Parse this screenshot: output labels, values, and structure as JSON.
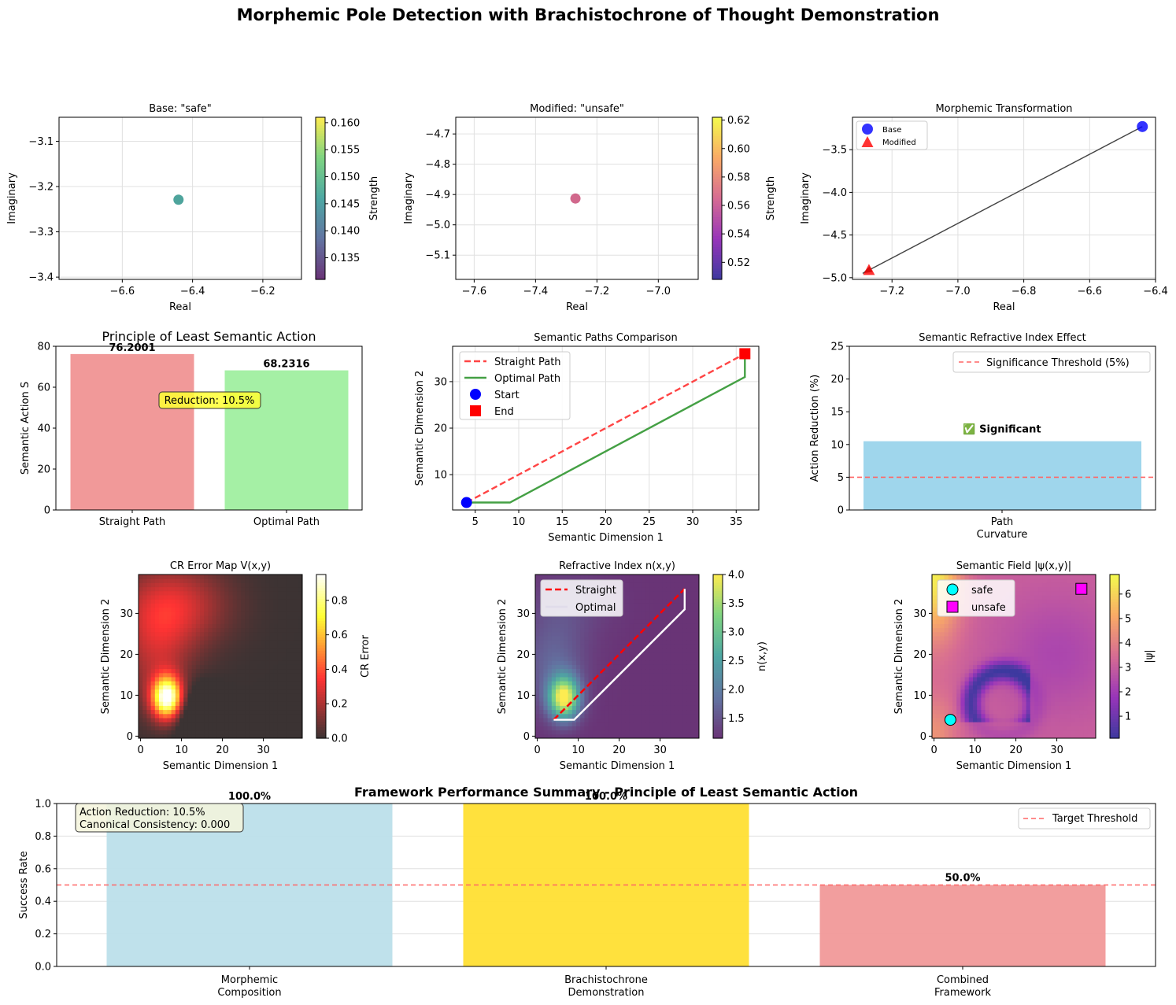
{
  "figure": {
    "title": "Morphemic Pole Detection with Brachistochrone of Thought Demonstration"
  },
  "chart_data": [
    {
      "id": "base",
      "type": "scatter",
      "title": "Base: \"safe\"",
      "xlabel": "Real",
      "ylabel": "Imaginary",
      "xticks": [
        "−6.6",
        "−6.4",
        "−6.2"
      ],
      "yticks": [
        "−3.4",
        "−3.3",
        "−3.2",
        "−3.1"
      ],
      "xlim": [
        -6.78,
        -6.09
      ],
      "ylim": [
        -3.405,
        -3.047
      ],
      "points": [
        {
          "x": -6.44,
          "y": -3.229,
          "strength": 0.146
        }
      ],
      "colorbar": {
        "label": "Strength",
        "ticks": [
          "0.135",
          "0.140",
          "0.145",
          "0.150",
          "0.155",
          "0.160"
        ],
        "range": [
          0.131,
          0.161
        ],
        "colormap": "viridis"
      },
      "point_color": "#3b9a91"
    },
    {
      "id": "modified",
      "type": "scatter",
      "title": "Modified: \"unsafe\"",
      "xlabel": "Real",
      "ylabel": "Imaginary",
      "xticks": [
        "−7.6",
        "−7.4",
        "−7.2",
        "−7.0"
      ],
      "yticks": [
        "−5.1",
        "−5.0",
        "−4.9",
        "−4.8",
        "−4.7"
      ],
      "xlim": [
        -7.66,
        -6.87
      ],
      "ylim": [
        -5.18,
        -4.645
      ],
      "points": [
        {
          "x": -7.27,
          "y": -4.913,
          "strength": 0.565
        }
      ],
      "colorbar": {
        "label": "Strength",
        "ticks": [
          "0.52",
          "0.54",
          "0.56",
          "0.58",
          "0.60",
          "0.62"
        ],
        "range": [
          0.508,
          0.622
        ],
        "colormap": "plasma"
      },
      "point_color": "#cc5880"
    },
    {
      "id": "transformation",
      "type": "scatter",
      "title": "Morphemic Transformation",
      "xlabel": "Real",
      "ylabel": "Imaginary",
      "xticks": [
        "−7.2",
        "−7.0",
        "−6.8",
        "−6.6",
        "−6.4"
      ],
      "yticks": [
        "−5.0",
        "−4.5",
        "−4.0",
        "−3.5"
      ],
      "xlim": [
        -7.32,
        -6.4
      ],
      "ylim": [
        -5.02,
        -3.12
      ],
      "series": [
        {
          "name": "Base",
          "x": -6.44,
          "y": -3.229,
          "color": "#0000ff",
          "marker": "circle"
        },
        {
          "name": "Modified",
          "x": -7.27,
          "y": -4.913,
          "color": "#ff0000",
          "marker": "triangle"
        }
      ],
      "legend": {
        "position": "upper-left",
        "entries": [
          "Base",
          "Modified"
        ]
      }
    },
    {
      "id": "least_action",
      "type": "bar",
      "title": "Principle of Least Semantic Action",
      "ylabel": "Semantic Action S",
      "categories": [
        "Straight Path",
        "Optimal Path"
      ],
      "values": [
        76.2001,
        68.2316
      ],
      "value_labels": [
        "76.2001",
        "68.2316"
      ],
      "colors": [
        "#f19999",
        "#a5f0a5"
      ],
      "yticks": [
        "0",
        "20",
        "40",
        "60",
        "80"
      ],
      "ylim": [
        0,
        80
      ],
      "annotation": "Reduction: 10.5%"
    },
    {
      "id": "paths",
      "type": "line",
      "title": "Semantic Paths Comparison",
      "xlabel": "Semantic Dimension 1",
      "ylabel": "Semantic Dimension 2",
      "xticks": [
        "5",
        "10",
        "15",
        "20",
        "25",
        "30",
        "35"
      ],
      "yticks": [
        "10",
        "20",
        "30"
      ],
      "xlim": [
        2.4,
        37.6
      ],
      "ylim": [
        2.4,
        37.6
      ],
      "series": [
        {
          "name": "Straight Path",
          "points": [
            [
              4,
              4
            ],
            [
              36,
              36
            ]
          ],
          "color": "#ff4444",
          "style": "dashed"
        },
        {
          "name": "Optimal Path",
          "points": [
            [
              4,
              4
            ],
            [
              9,
              4
            ],
            [
              36,
              31
            ],
            [
              36,
              36
            ]
          ],
          "color": "#44a044",
          "style": "solid"
        }
      ],
      "markers": [
        {
          "name": "Start",
          "x": 4,
          "y": 4,
          "color": "#0000ff"
        },
        {
          "name": "End",
          "x": 36,
          "y": 36,
          "color": "#ff0000"
        }
      ],
      "legend": {
        "position": "upper-left",
        "entries": [
          "Straight Path",
          "Optimal Path",
          "Start",
          "End"
        ]
      }
    },
    {
      "id": "refractive_effect",
      "type": "bar",
      "title": "Semantic Refractive Index Effect",
      "ylabel": "Action Reduction (%)",
      "categories": [
        "Path\nCurvature"
      ],
      "category_lines": [
        "Path",
        "Curvature"
      ],
      "values": [
        10.5
      ],
      "color": "#9fd6ec",
      "yticks": [
        "0",
        "5",
        "10",
        "15",
        "20",
        "25"
      ],
      "ylim": [
        0,
        25
      ],
      "threshold": {
        "value": 5,
        "label": "Significance Threshold (5%)"
      },
      "annotation": "✅ Significant"
    },
    {
      "id": "cr_error_map",
      "type": "heatmap",
      "title": "CR Error Map V(x,y)",
      "xlabel": "Semantic Dimension 1",
      "ylabel": "Semantic Dimension 2",
      "xticks": [
        "0",
        "10",
        "20",
        "30"
      ],
      "yticks": [
        "0",
        "10",
        "20",
        "30"
      ],
      "grid_size": 40,
      "colorbar": {
        "label": "CR Error",
        "ticks": [
          "0.0",
          "0.2",
          "0.4",
          "0.6",
          "0.8"
        ],
        "range": [
          0,
          0.95
        ],
        "colormap": "hot"
      },
      "blobs": [
        {
          "x": 6.5,
          "y": 9.5,
          "sx": 2.6,
          "sy": 3.6,
          "amp": 0.98
        },
        {
          "x": 8,
          "y": 32,
          "sx": 9,
          "sy": 7,
          "amp": 0.28
        },
        {
          "x": 4,
          "y": 20,
          "sx": 6,
          "sy": 9,
          "amp": 0.2
        }
      ]
    },
    {
      "id": "refractive_index",
      "type": "heatmap",
      "title": "Refractive Index n(x,y)",
      "xlabel": "Semantic Dimension 1",
      "ylabel": "Semantic Dimension 2",
      "xticks": [
        "0",
        "10",
        "20",
        "30"
      ],
      "yticks": [
        "0",
        "10",
        "20",
        "30"
      ],
      "grid_size": 40,
      "colorbar": {
        "label": "n(x,y)",
        "ticks": [
          "1.5",
          "2.0",
          "2.5",
          "3.0",
          "3.5",
          "4.0"
        ],
        "range": [
          1.15,
          4.0
        ],
        "colormap": "viridis"
      },
      "series": [
        {
          "name": "Straight",
          "points": [
            [
              4,
              4
            ],
            [
              36,
              36
            ]
          ],
          "color": "#ff0000",
          "style": "dashed"
        },
        {
          "name": "Optimal",
          "points": [
            [
              4,
              4
            ],
            [
              9,
              4
            ],
            [
              36,
              31
            ],
            [
              36,
              36
            ]
          ],
          "color": "#ffffff",
          "style": "solid"
        }
      ],
      "legend": {
        "position": "upper-left",
        "entries": [
          "Straight",
          "Optimal"
        ]
      }
    },
    {
      "id": "semantic_field",
      "type": "heatmap",
      "title": "Semantic Field |ψ(x,y)|",
      "xlabel": "Semantic Dimension 1",
      "ylabel": "Semantic Dimension 2",
      "xticks": [
        "0",
        "10",
        "20",
        "30"
      ],
      "yticks": [
        "0",
        "10",
        "20",
        "30"
      ],
      "grid_size": 40,
      "colorbar": {
        "label": "|ψ|",
        "ticks": [
          "1",
          "2",
          "3",
          "4",
          "5",
          "6"
        ],
        "range": [
          0.1,
          6.8
        ],
        "colormap": "plasma"
      },
      "markers": [
        {
          "name": "safe",
          "x": 4,
          "y": 4,
          "color": "#00ffff",
          "marker": "circle"
        },
        {
          "name": "unsafe",
          "x": 36,
          "y": 36,
          "color": "#ff00ff",
          "marker": "square"
        }
      ],
      "legend": {
        "position": "upper-left",
        "entries": [
          "safe",
          "unsafe"
        ]
      }
    },
    {
      "id": "summary",
      "type": "bar",
      "title": "Framework Performance Summary - Principle of Least Semantic Action",
      "ylabel": "Success Rate",
      "categories": [
        "Morphemic Composition",
        "Brachistochrone Demonstration",
        "Combined Framework"
      ],
      "category_lines": [
        [
          "Morphemic",
          "Composition"
        ],
        [
          "Brachistochrone",
          "Demonstration"
        ],
        [
          "Combined",
          "Framework"
        ]
      ],
      "values": [
        1.0,
        1.0,
        0.5
      ],
      "value_labels": [
        "100.0%",
        "100.0%",
        "50.0%"
      ],
      "colors": [
        "#bcdfea",
        "#ffdf33",
        "#f19999"
      ],
      "yticks": [
        "0.0",
        "0.2",
        "0.4",
        "0.6",
        "0.8",
        "1.0"
      ],
      "ylim": [
        0,
        1
      ],
      "threshold": {
        "value": 0.5,
        "label": "Target Threshold"
      },
      "info_box": [
        "Action Reduction: 10.5%",
        "Canonical Consistency: 0.000"
      ]
    }
  ]
}
